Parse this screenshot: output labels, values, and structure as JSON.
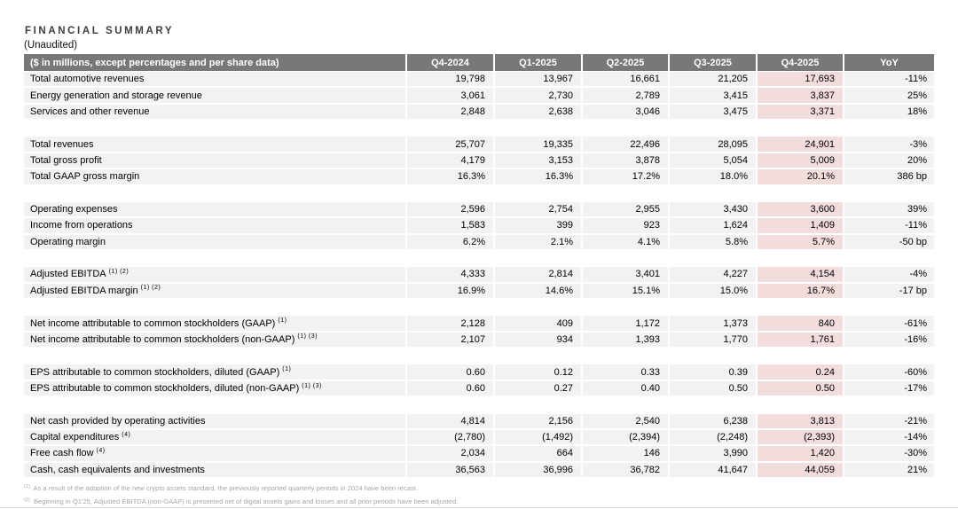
{
  "header": {
    "title": "FINANCIAL SUMMARY",
    "subtitle": "(Unaudited)"
  },
  "colors": {
    "table_header_bg": "#787878",
    "table_header_text": "#ffffff",
    "row_bg": "#f2f2f2",
    "highlight_column_bg": "#f2dddc",
    "footnote_text": "#a6a6a6"
  },
  "table": {
    "header_label": "($ in millions, except percentages and per share data)",
    "columns": [
      "Q4-2024",
      "Q1-2025",
      "Q2-2025",
      "Q3-2025",
      "Q4-2025",
      "YoY"
    ],
    "highlight_column": "Q4-2025",
    "highlight_column_index": 4,
    "rows": [
      {
        "type": "data",
        "label": "Total automotive revenues",
        "sup": "",
        "values": [
          "19,798",
          "13,967",
          "16,661",
          "21,205",
          "17,693",
          "-11%"
        ]
      },
      {
        "type": "data",
        "label": "Energy generation and storage revenue",
        "sup": "",
        "values": [
          "3,061",
          "2,730",
          "2,789",
          "3,415",
          "3,837",
          "25%"
        ]
      },
      {
        "type": "data",
        "label": "Services and other revenue",
        "sup": "",
        "values": [
          "2,848",
          "2,638",
          "3,046",
          "3,475",
          "3,371",
          "18%"
        ]
      },
      {
        "type": "spacer"
      },
      {
        "type": "data",
        "label": "Total revenues",
        "sup": "",
        "values": [
          "25,707",
          "19,335",
          "22,496",
          "28,095",
          "24,901",
          "-3%"
        ]
      },
      {
        "type": "data",
        "label": "Total gross profit",
        "sup": "",
        "values": [
          "4,179",
          "3,153",
          "3,878",
          "5,054",
          "5,009",
          "20%"
        ]
      },
      {
        "type": "data",
        "label": "Total GAAP gross margin",
        "sup": "",
        "values": [
          "16.3%",
          "16.3%",
          "17.2%",
          "18.0%",
          "20.1%",
          "386 bp"
        ]
      },
      {
        "type": "spacer"
      },
      {
        "type": "data",
        "label": "Operating expenses",
        "sup": "",
        "values": [
          "2,596",
          "2,754",
          "2,955",
          "3,430",
          "3,600",
          "39%"
        ]
      },
      {
        "type": "data",
        "label": "Income from operations",
        "sup": "",
        "values": [
          "1,583",
          "399",
          "923",
          "1,624",
          "1,409",
          "-11%"
        ]
      },
      {
        "type": "data",
        "label": "Operating margin",
        "sup": "",
        "values": [
          "6.2%",
          "2.1%",
          "4.1%",
          "5.8%",
          "5.7%",
          "-50 bp"
        ]
      },
      {
        "type": "spacer"
      },
      {
        "type": "data",
        "label": "Adjusted EBITDA",
        "sup": "(1) (2)",
        "values": [
          "4,333",
          "2,814",
          "3,401",
          "4,227",
          "4,154",
          "-4%"
        ]
      },
      {
        "type": "data",
        "label": "Adjusted EBITDA margin",
        "sup": "(1) (2)",
        "values": [
          "16.9%",
          "14.6%",
          "15.1%",
          "15.0%",
          "16.7%",
          "-17 bp"
        ]
      },
      {
        "type": "spacer"
      },
      {
        "type": "data",
        "label": "Net income attributable to common stockholders (GAAP)",
        "sup": "(1)",
        "values": [
          "2,128",
          "409",
          "1,172",
          "1,373",
          "840",
          "-61%"
        ]
      },
      {
        "type": "data",
        "label": "Net income attributable to common stockholders (non-GAAP)",
        "sup": "(1) (3)",
        "values": [
          "2,107",
          "934",
          "1,393",
          "1,770",
          "1,761",
          "-16%"
        ]
      },
      {
        "type": "spacer"
      },
      {
        "type": "data",
        "label": "EPS attributable to common stockholders, diluted (GAAP)",
        "sup": "(1)",
        "values": [
          "0.60",
          "0.12",
          "0.33",
          "0.39",
          "0.24",
          "-60%"
        ]
      },
      {
        "type": "data",
        "label": "EPS attributable to common stockholders, diluted (non-GAAP)",
        "sup": "(1) (3)",
        "values": [
          "0.60",
          "0.27",
          "0.40",
          "0.50",
          "0.50",
          "-17%"
        ]
      },
      {
        "type": "spacer"
      },
      {
        "type": "data",
        "label": "Net cash provided by operating activities",
        "sup": "",
        "values": [
          "4,814",
          "2,156",
          "2,540",
          "6,238",
          "3,813",
          "-21%"
        ]
      },
      {
        "type": "data",
        "label": "Capital expenditures",
        "sup": "(4)",
        "values": [
          "(2,780)",
          "(1,492)",
          "(2,394)",
          "(2,248)",
          "(2,393)",
          "-14%"
        ]
      },
      {
        "type": "data",
        "label": "Free cash flow",
        "sup": "(4)",
        "values": [
          "2,034",
          "664",
          "146",
          "3,990",
          "1,420",
          "-30%"
        ]
      },
      {
        "type": "data",
        "label": "Cash, cash equivalents and investments",
        "sup": "",
        "values": [
          "36,563",
          "36,996",
          "36,782",
          "41,647",
          "44,059",
          "21%"
        ]
      }
    ]
  },
  "footnotes": [
    {
      "marker": "(1)",
      "text": "As a result of the adoption of the new crypto assets standard, the previously reported quarterly periods in 2024 have been recast."
    },
    {
      "marker": "(2)",
      "text": "Beginning in Q1'25, Adjusted EBITDA (non-GAAP) is presented net of digital assets gains and losses and all prior periods have been adjusted."
    }
  ]
}
